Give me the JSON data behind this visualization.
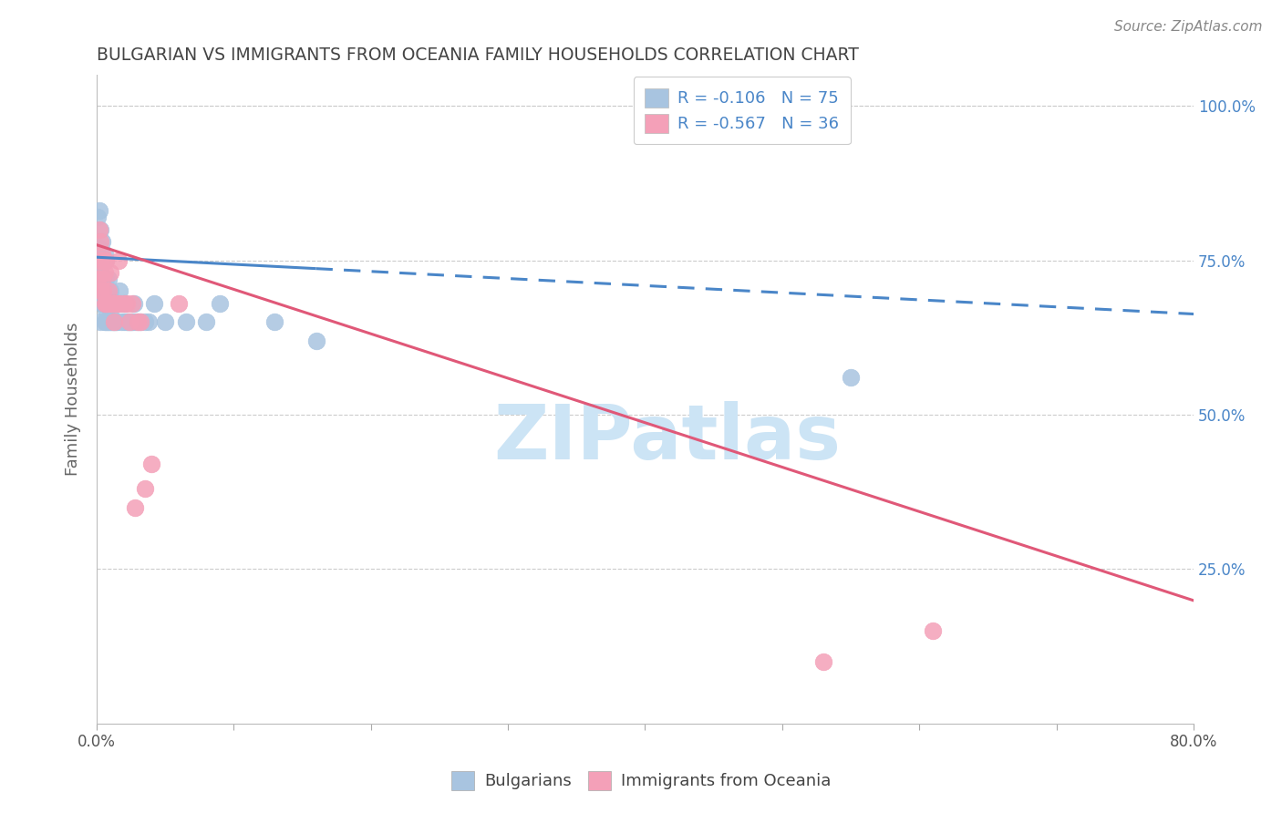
{
  "title": "BULGARIAN VS IMMIGRANTS FROM OCEANIA FAMILY HOUSEHOLDS CORRELATION CHART",
  "source": "Source: ZipAtlas.com",
  "ylabel": "Family Households",
  "ytick_labels": [
    "100.0%",
    "75.0%",
    "50.0%",
    "25.0%"
  ],
  "ytick_values": [
    1.0,
    0.75,
    0.5,
    0.25
  ],
  "legend_r1": "-0.106",
  "legend_n1": "75",
  "legend_r2": "-0.567",
  "legend_n2": "36",
  "blue_color": "#a8c4e0",
  "pink_color": "#f4a0b8",
  "blue_line_color": "#4a86c8",
  "pink_line_color": "#e05878",
  "blue_line_solid_end": 0.16,
  "watermark_text": "ZIPatlas",
  "watermark_color": "#cce4f5",
  "background_color": "#ffffff",
  "grid_color": "#cccccc",
  "title_color": "#444444",
  "right_axis_color": "#4a86c8",
  "legend_text_color": "#4a86c8",
  "xlim": [
    0.0,
    0.8
  ],
  "ylim": [
    0.0,
    1.05
  ],
  "blue_intercept": 0.755,
  "blue_slope": -0.115,
  "pink_intercept": 0.775,
  "pink_slope": -0.72,
  "bulgarians_x": [
    0.001,
    0.001,
    0.001,
    0.001,
    0.002,
    0.002,
    0.002,
    0.002,
    0.002,
    0.003,
    0.003,
    0.003,
    0.003,
    0.003,
    0.003,
    0.004,
    0.004,
    0.004,
    0.004,
    0.004,
    0.005,
    0.005,
    0.005,
    0.005,
    0.006,
    0.006,
    0.006,
    0.006,
    0.006,
    0.007,
    0.007,
    0.007,
    0.007,
    0.007,
    0.008,
    0.008,
    0.008,
    0.009,
    0.009,
    0.009,
    0.01,
    0.01,
    0.01,
    0.011,
    0.011,
    0.012,
    0.012,
    0.013,
    0.014,
    0.015,
    0.016,
    0.017,
    0.018,
    0.019,
    0.02,
    0.021,
    0.022,
    0.023,
    0.024,
    0.025,
    0.026,
    0.027,
    0.028,
    0.03,
    0.032,
    0.035,
    0.038,
    0.042,
    0.05,
    0.065,
    0.08,
    0.09,
    0.13,
    0.16,
    0.55
  ],
  "bulgarians_y": [
    0.72,
    0.74,
    0.76,
    0.82,
    0.7,
    0.72,
    0.75,
    0.77,
    0.83,
    0.65,
    0.7,
    0.72,
    0.74,
    0.76,
    0.8,
    0.68,
    0.7,
    0.72,
    0.75,
    0.78,
    0.68,
    0.7,
    0.72,
    0.75,
    0.65,
    0.68,
    0.7,
    0.72,
    0.76,
    0.65,
    0.67,
    0.7,
    0.72,
    0.75,
    0.65,
    0.68,
    0.7,
    0.65,
    0.68,
    0.72,
    0.65,
    0.67,
    0.7,
    0.65,
    0.68,
    0.65,
    0.68,
    0.65,
    0.65,
    0.65,
    0.68,
    0.7,
    0.65,
    0.68,
    0.65,
    0.68,
    0.65,
    0.65,
    0.65,
    0.65,
    0.65,
    0.68,
    0.65,
    0.65,
    0.65,
    0.65,
    0.65,
    0.68,
    0.65,
    0.65,
    0.65,
    0.68,
    0.65,
    0.62,
    0.56
  ],
  "oceania_x": [
    0.001,
    0.002,
    0.002,
    0.003,
    0.003,
    0.004,
    0.004,
    0.005,
    0.005,
    0.006,
    0.006,
    0.007,
    0.007,
    0.008,
    0.009,
    0.01,
    0.01,
    0.011,
    0.012,
    0.013,
    0.014,
    0.015,
    0.016,
    0.017,
    0.02,
    0.022,
    0.024,
    0.026,
    0.028,
    0.03,
    0.032,
    0.035,
    0.04,
    0.06,
    0.53,
    0.61
  ],
  "oceania_y": [
    0.72,
    0.75,
    0.8,
    0.7,
    0.78,
    0.72,
    0.76,
    0.7,
    0.75,
    0.68,
    0.73,
    0.68,
    0.75,
    0.68,
    0.7,
    0.68,
    0.73,
    0.68,
    0.68,
    0.65,
    0.68,
    0.68,
    0.75,
    0.68,
    0.68,
    0.68,
    0.65,
    0.68,
    0.35,
    0.65,
    0.65,
    0.38,
    0.42,
    0.68,
    0.1,
    0.15
  ]
}
